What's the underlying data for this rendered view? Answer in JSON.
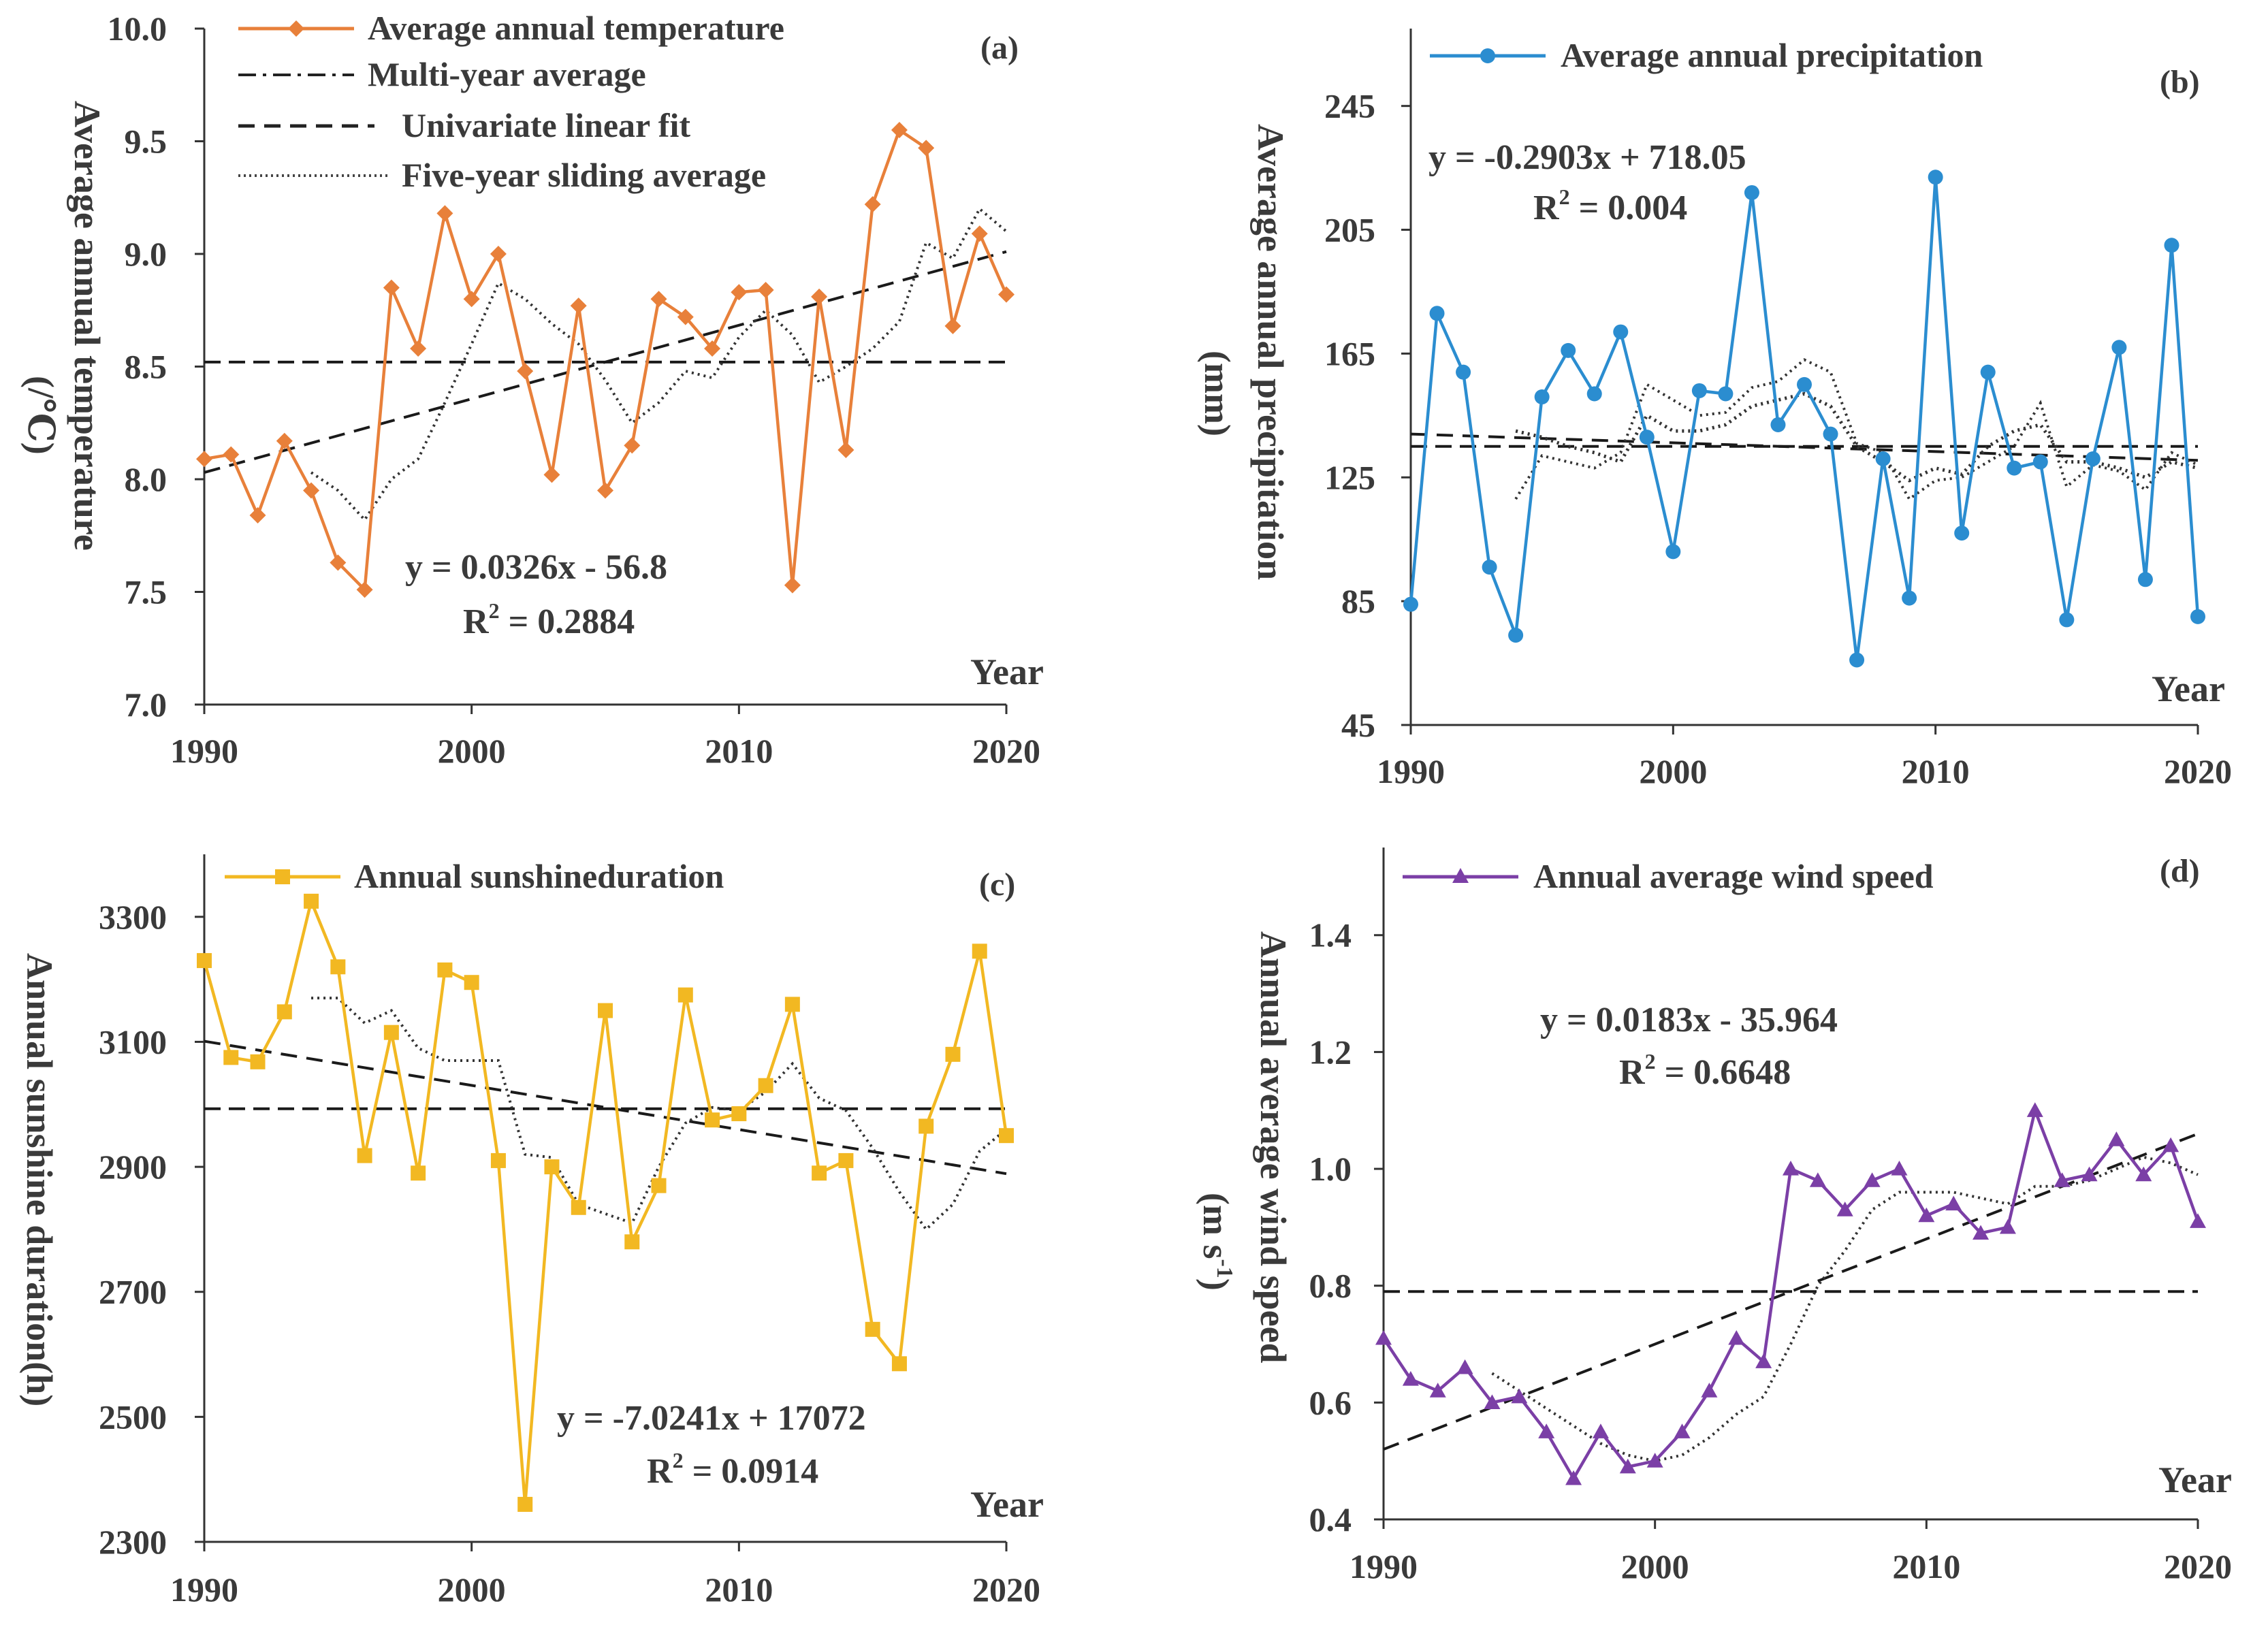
{
  "chart_data": [
    {
      "type": "line",
      "panel_label": "(a)",
      "ylabel": "Average annual temperature",
      "yunit": "(/℃)",
      "xlabel": "Year",
      "xlim": [
        1990,
        2020
      ],
      "ylim": [
        7.0,
        10.0
      ],
      "yticks": [
        "7.0",
        "7.5",
        "8.0",
        "8.5",
        "9.0",
        "9.5",
        "10.0"
      ],
      "xticks": [
        "1990",
        "2000",
        "2010",
        "2020"
      ],
      "color": "#E8803A",
      "marker": "diamond",
      "legend": {
        "series": "Average annual temperature",
        "mean": "Multi-year average",
        "fit": "Univariate linear fit",
        "moving": "Five-year sliding average"
      },
      "equation": "y = 0.0326x - 56.8",
      "r2_prefix": "R",
      "r2_suffix": " = 0.2884",
      "years": [
        1990,
        1991,
        1992,
        1993,
        1994,
        1995,
        1996,
        1997,
        1998,
        1999,
        2000,
        2001,
        2002,
        2003,
        2004,
        2005,
        2006,
        2007,
        2008,
        2009,
        2010,
        2011,
        2012,
        2013,
        2014,
        2015,
        2016,
        2017,
        2018,
        2019,
        2020
      ],
      "values": [
        8.09,
        8.11,
        7.84,
        8.17,
        7.95,
        7.63,
        7.51,
        8.85,
        8.58,
        9.18,
        8.8,
        9.0,
        8.48,
        8.02,
        8.77,
        7.95,
        8.15,
        8.8,
        8.72,
        8.58,
        8.83,
        8.84,
        7.53,
        8.81,
        8.13,
        9.22,
        9.55,
        9.47,
        8.68,
        9.09,
        8.82
      ],
      "multi_year_average": 8.52,
      "fit_line": {
        "x": [
          1990,
          2020
        ],
        "y": [
          8.03,
          9.01
        ]
      },
      "moving_average": {
        "x": [
          1994,
          1995,
          1996,
          1997,
          1998,
          1999,
          2000,
          2001,
          2002,
          2003,
          2004,
          2005,
          2006,
          2007,
          2008,
          2009,
          2010,
          2011,
          2012,
          2013,
          2014,
          2015,
          2016,
          2017,
          2018,
          2019,
          2020
        ],
        "y": [
          8.03,
          7.95,
          7.82,
          8.0,
          8.09,
          8.34,
          8.6,
          8.87,
          8.8,
          8.69,
          8.6,
          8.44,
          8.25,
          8.34,
          8.48,
          8.45,
          8.63,
          8.75,
          8.64,
          8.43,
          8.5,
          8.58,
          8.7,
          9.05,
          8.98,
          9.2,
          9.1
        ]
      }
    },
    {
      "type": "line",
      "panel_label": "(b)",
      "ylabel": "Average annual precipitation",
      "yunit": "(mm)",
      "xlabel": "Year",
      "xlim": [
        1990,
        2020
      ],
      "ylim": [
        45,
        270
      ],
      "yticks": [
        "45",
        "85",
        "125",
        "165",
        "205",
        "245"
      ],
      "xticks": [
        "1990",
        "2000",
        "2010",
        "2020"
      ],
      "color": "#2B8DD0",
      "marker": "circle",
      "legend": {
        "series": "Average annual precipitation"
      },
      "equation": "y = -0.2903x + 718.05",
      "r2_prefix": "R",
      "r2_suffix": " = 0.004",
      "years": [
        1990,
        1991,
        1992,
        1993,
        1994,
        1995,
        1996,
        1997,
        1998,
        1999,
        2000,
        2001,
        2002,
        2003,
        2004,
        2005,
        2006,
        2007,
        2008,
        2009,
        2010,
        2011,
        2012,
        2013,
        2014,
        2015,
        2016,
        2017,
        2018,
        2019,
        2020
      ],
      "values": [
        84,
        178,
        159,
        96,
        74,
        151,
        166,
        152,
        172,
        138,
        101,
        153,
        152,
        217,
        142,
        155,
        139,
        66,
        131,
        86,
        222,
        107,
        159,
        128,
        130,
        79,
        131,
        167,
        92,
        200,
        80
      ],
      "multi_year_average": 135,
      "fit_line": {
        "x": [
          1990,
          2020
        ],
        "y": [
          139.0,
          130.5
        ]
      },
      "moving_average": {
        "x": [
          1994,
          1995,
          1996,
          1997,
          1998,
          1999,
          2000,
          2001,
          2002,
          2003,
          2004,
          2005,
          2006,
          2007,
          2008,
          2009,
          2010,
          2011,
          2012,
          2013,
          2014,
          2015,
          2016,
          2017,
          2018,
          2019,
          2020
        ],
        "y": [
          118,
          132,
          130,
          128,
          133,
          155,
          150,
          145,
          146,
          154,
          156,
          163,
          159,
          136,
          133,
          118,
          124,
          125,
          130,
          135,
          149,
          122,
          129,
          127,
          121,
          133,
          129
        ]
      },
      "moving_average_2": {
        "x": [
          1994,
          1995,
          1996,
          1997,
          1998,
          1999,
          2000,
          2001,
          2002,
          2003,
          2004,
          2005,
          2006,
          2007,
          2008,
          2009,
          2010,
          2011,
          2012,
          2013,
          2014,
          2015,
          2016,
          2017,
          2018,
          2019,
          2020
        ],
        "y": [
          140,
          138,
          135,
          133,
          130,
          145,
          140,
          140,
          142,
          148,
          150,
          152,
          148,
          135,
          130,
          124,
          128,
          126,
          135,
          140,
          142,
          130,
          130,
          128,
          125,
          130,
          128
        ]
      }
    },
    {
      "type": "line",
      "panel_label": "(c)",
      "ylabel": "Annual sunshine duration(h)",
      "xlabel": "Year",
      "xlim": [
        1990,
        2020
      ],
      "ylim": [
        2300,
        3400
      ],
      "yticks": [
        "2300",
        "2500",
        "2700",
        "2900",
        "3100",
        "3300"
      ],
      "xticks": [
        "1990",
        "2000",
        "2010",
        "2020"
      ],
      "color": "#F2B822",
      "marker": "square",
      "legend": {
        "series": "Annual sunshineduration"
      },
      "equation": "y = -7.0241x + 17072",
      "r2_prefix": "R",
      "r2_suffix": " = 0.0914",
      "years": [
        1990,
        1991,
        1992,
        1993,
        1994,
        1995,
        1996,
        1997,
        1998,
        1999,
        2000,
        2001,
        2002,
        2003,
        2004,
        2005,
        2006,
        2007,
        2008,
        2009,
        2010,
        2011,
        2012,
        2013,
        2014,
        2015,
        2016,
        2017,
        2018,
        2019,
        2020
      ],
      "values": [
        3230,
        3075,
        3068,
        3148,
        3325,
        3220,
        2918,
        3115,
        2890,
        3215,
        3195,
        2910,
        2360,
        2900,
        2835,
        3150,
        2780,
        2870,
        3175,
        2975,
        2985,
        3030,
        3160,
        2890,
        2910,
        2640,
        2585,
        2965,
        3080,
        3245,
        2950
      ],
      "multi_year_average": 2993,
      "fit_line": {
        "x": [
          1990,
          2020
        ],
        "y": [
          3101,
          2889
        ]
      },
      "moving_average": {
        "x": [
          1994,
          1995,
          1996,
          1997,
          1998,
          1999,
          2000,
          2001,
          2002,
          2003,
          2004,
          2005,
          2006,
          2007,
          2008,
          2009,
          2010,
          2011,
          2012,
          2013,
          2014,
          2015,
          2016,
          2017,
          2018,
          2019,
          2020
        ],
        "y": [
          3170,
          3170,
          3130,
          3150,
          3090,
          3070,
          3070,
          3070,
          2920,
          2915,
          2840,
          2825,
          2810,
          2900,
          2970,
          2995,
          2990,
          3020,
          3065,
          3010,
          2990,
          2930,
          2860,
          2800,
          2840,
          2925,
          2960
        ]
      }
    },
    {
      "type": "line",
      "panel_label": "(d)",
      "ylabel": "Annual average wind speed",
      "yunit_base": "(m s",
      "yunit_sup": "-1",
      "yunit_close": ")",
      "xlabel": "Year",
      "xlim": [
        1990,
        2020
      ],
      "ylim": [
        0.4,
        1.55
      ],
      "yticks": [
        "0.4",
        "0.6",
        "0.8",
        "1.0",
        "1.2",
        "1.4"
      ],
      "xticks": [
        "1990",
        "2000",
        "2010",
        "2020"
      ],
      "color": "#7B3FA6",
      "marker": "triangle",
      "legend": {
        "series": "Annual average wind speed"
      },
      "equation": "y = 0.0183x - 35.964",
      "r2_prefix": "R",
      "r2_suffix": " = 0.6648",
      "years": [
        1990,
        1991,
        1992,
        1993,
        1994,
        1995,
        1996,
        1997,
        1998,
        1999,
        2000,
        2001,
        2002,
        2003,
        2004,
        2005,
        2006,
        2007,
        2008,
        2009,
        2010,
        2011,
        2012,
        2013,
        2014,
        2015,
        2016,
        2017,
        2018,
        2019,
        2020
      ],
      "values": [
        0.71,
        0.64,
        0.62,
        0.66,
        0.6,
        0.61,
        0.55,
        0.47,
        0.55,
        0.49,
        0.5,
        0.55,
        0.62,
        0.71,
        0.67,
        1.0,
        0.98,
        0.93,
        0.98,
        1.0,
        0.92,
        0.94,
        0.89,
        0.9,
        1.1,
        0.98,
        0.99,
        1.05,
        0.99,
        1.04,
        0.91
      ],
      "multi_year_average": 0.79,
      "fit_line": {
        "x": [
          1990,
          2020
        ],
        "y": [
          0.52,
          1.06
        ]
      },
      "moving_average": {
        "x": [
          1994,
          1995,
          1996,
          1997,
          1998,
          1999,
          2000,
          2001,
          2002,
          2003,
          2004,
          2005,
          2006,
          2007,
          2008,
          2009,
          2010,
          2011,
          2012,
          2013,
          2014,
          2015,
          2016,
          2017,
          2018,
          2019,
          2020
        ],
        "y": [
          0.65,
          0.62,
          0.59,
          0.56,
          0.53,
          0.51,
          0.5,
          0.51,
          0.54,
          0.58,
          0.61,
          0.7,
          0.8,
          0.86,
          0.93,
          0.96,
          0.96,
          0.96,
          0.95,
          0.94,
          0.97,
          0.97,
          0.98,
          1.0,
          1.02,
          1.01,
          0.99
        ]
      }
    }
  ]
}
